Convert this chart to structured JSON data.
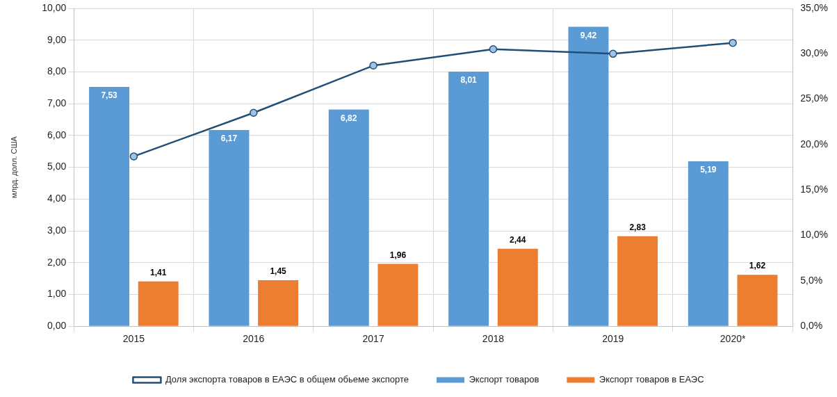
{
  "chart_data": {
    "type": "bar",
    "ylabel": "млрд. долл. США",
    "categories": [
      "2015",
      "2016",
      "2017",
      "2018",
      "2019",
      "2020*"
    ],
    "series": [
      {
        "name": "Экспорт товаров",
        "color": "#5b9bd5",
        "values": [
          7.53,
          6.17,
          6.82,
          8.01,
          9.42,
          5.19
        ],
        "value_labels": [
          "7,53",
          "6,17",
          "6,82",
          "8,01",
          "9,42",
          "5,19"
        ]
      },
      {
        "name": "Экспорт товаров в ЕАЭС",
        "color": "#ed7d31",
        "values": [
          1.41,
          1.45,
          1.96,
          2.44,
          2.83,
          1.62
        ],
        "value_labels": [
          "1,41",
          "1,45",
          "1,96",
          "2,44",
          "2,83",
          "1,62"
        ]
      },
      {
        "name": "Доля экспорта товаров в ЕАЭС в общем обьеме экспорте",
        "type": "line",
        "axis": "y2",
        "color": "#1f4e79",
        "marker": "circle",
        "values": [
          18.7,
          23.5,
          28.7,
          30.5,
          30.0,
          31.2
        ]
      }
    ],
    "ylim": [
      0,
      10
    ],
    "yticks": [
      {
        "value": 0,
        "label": "0,00"
      },
      {
        "value": 1,
        "label": "1,00"
      },
      {
        "value": 2,
        "label": "2,00"
      },
      {
        "value": 3,
        "label": "3,00"
      },
      {
        "value": 4,
        "label": "4,00"
      },
      {
        "value": 5,
        "label": "5,00"
      },
      {
        "value": 6,
        "label": "6,00"
      },
      {
        "value": 7,
        "label": "7,00"
      },
      {
        "value": 8,
        "label": "8,00"
      },
      {
        "value": 9,
        "label": "9,00"
      },
      {
        "value": 10,
        "label": "10,00"
      }
    ],
    "y2lim": [
      0,
      35
    ],
    "y2ticks": [
      {
        "value": 0,
        "label": "0,0%"
      },
      {
        "value": 5,
        "label": "5,0%"
      },
      {
        "value": 10,
        "label": "10,0%"
      },
      {
        "value": 15,
        "label": "15,0%"
      },
      {
        "value": 20,
        "label": "20,0%"
      },
      {
        "value": 25,
        "label": "25,0%"
      },
      {
        "value": 30,
        "label": "30,0%"
      },
      {
        "value": 35,
        "label": "35,0%"
      }
    ],
    "grid": true,
    "legend": "bottom"
  }
}
